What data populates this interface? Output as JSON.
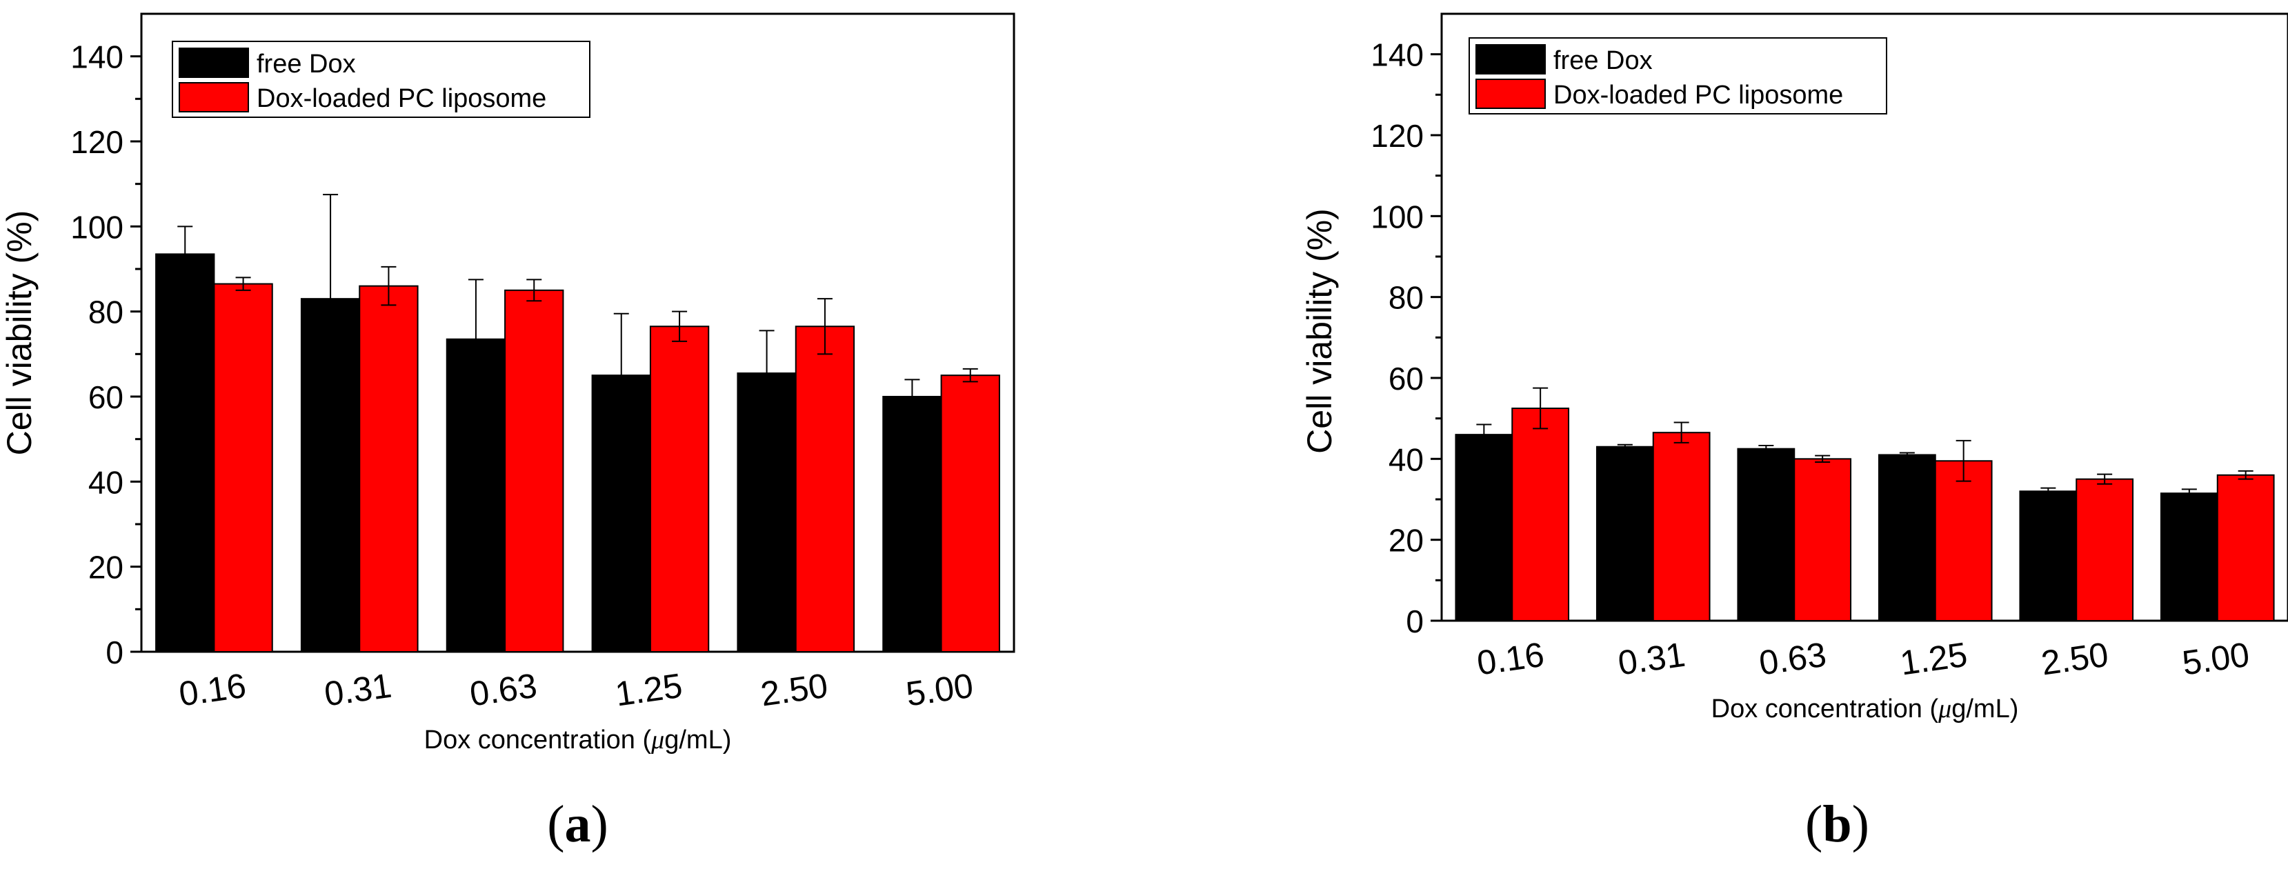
{
  "colors": {
    "series1": "#000000",
    "series2": "#ff0000",
    "axis": "#000000",
    "background": "#ffffff"
  },
  "chart_data": [
    {
      "panel_label": "(a)",
      "panel_letter": "a",
      "type": "bar",
      "title": "",
      "xlabel": "Dox concentration (μg/mL)",
      "xlabel_prefix": "Dox concentration (",
      "xlabel_mu": "μ",
      "xlabel_suffix": "g/mL)",
      "ylabel": "Cell viability (%)",
      "ylim": [
        0,
        150
      ],
      "yticks": [
        0,
        20,
        40,
        60,
        80,
        100,
        120,
        140
      ],
      "grid": false,
      "legend_position": "top-left",
      "categories": [
        "0.16",
        "0.31",
        "0.63",
        "1.25",
        "2.50",
        "5.00"
      ],
      "series": [
        {
          "name": "free Dox",
          "color": "#000000",
          "values": [
            93.5,
            83,
            73.5,
            65,
            65.5,
            60
          ],
          "errors": [
            6.5,
            24.5,
            14,
            14.5,
            10,
            4
          ]
        },
        {
          "name": "Dox-loaded PC liposome",
          "color": "#ff0000",
          "values": [
            86.5,
            86,
            85,
            76.5,
            76.5,
            65
          ],
          "errors": [
            1.5,
            4.5,
            2.5,
            3.5,
            6.5,
            1.5
          ]
        }
      ]
    },
    {
      "panel_label": "(b)",
      "panel_letter": "b",
      "type": "bar",
      "title": "",
      "xlabel": "Dox concentration (μg/mL)",
      "xlabel_prefix": "Dox concentration (",
      "xlabel_mu": "μ",
      "xlabel_suffix": "g/mL)",
      "ylabel": "Cell viability (%)",
      "ylim": [
        0,
        150
      ],
      "yticks": [
        0,
        20,
        40,
        60,
        80,
        100,
        120,
        140
      ],
      "grid": false,
      "legend_position": "top-left",
      "categories": [
        "0.16",
        "0.31",
        "0.63",
        "1.25",
        "2.50",
        "5.00"
      ],
      "series": [
        {
          "name": "free Dox",
          "color": "#000000",
          "values": [
            46,
            43,
            42.5,
            41,
            32,
            31.5
          ],
          "errors": [
            2.5,
            0.5,
            0.8,
            0.5,
            0.8,
            1
          ]
        },
        {
          "name": "Dox-loaded PC liposome",
          "color": "#ff0000",
          "values": [
            52.5,
            46.5,
            40,
            39.5,
            35,
            36
          ],
          "errors": [
            5,
            2.5,
            0.8,
            5,
            1.2,
            1
          ]
        }
      ]
    }
  ]
}
